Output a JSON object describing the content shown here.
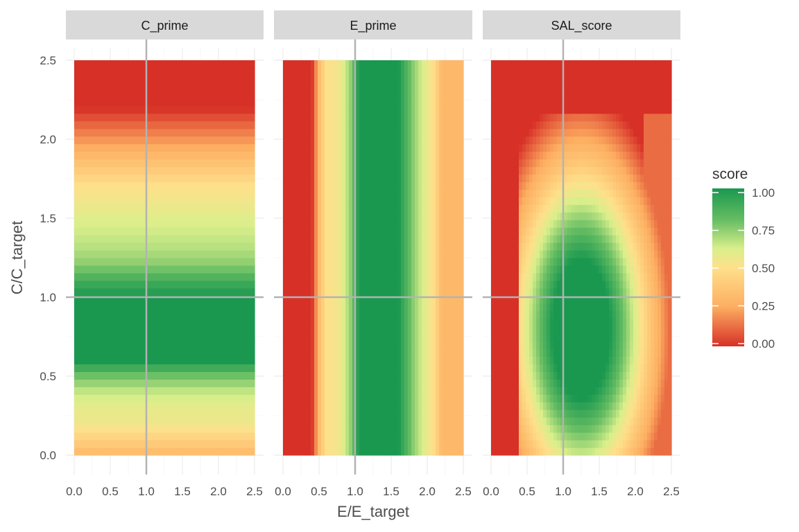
{
  "chart_data": {
    "type": "heatmap",
    "xlabel": "E/E_target",
    "ylabel": "C/C_target",
    "xlim": [
      0,
      2.5
    ],
    "ylim": [
      0,
      2.5
    ],
    "x_ticks": [
      "0.0",
      "0.5",
      "1.0",
      "1.5",
      "2.0",
      "2.5"
    ],
    "y_ticks": [
      "0.0",
      "0.5",
      "1.0",
      "1.5",
      "2.0",
      "2.5"
    ],
    "reference_lines": {
      "x": 1.0,
      "y": 1.0,
      "color": "#b3b3b3"
    },
    "grid": true,
    "facets": [
      {
        "name": "C_prime",
        "varies_with": "y",
        "profile": [
          {
            "v": 0.0,
            "score": 0.3
          },
          {
            "v": 0.1,
            "score": 0.42
          },
          {
            "v": 0.2,
            "score": 0.55
          },
          {
            "v": 0.3,
            "score": 0.58
          },
          {
            "v": 0.4,
            "score": 0.65
          },
          {
            "v": 0.5,
            "score": 0.78
          },
          {
            "v": 0.6,
            "score": 1.0
          },
          {
            "v": 1.0,
            "score": 1.0
          },
          {
            "v": 1.1,
            "score": 0.9
          },
          {
            "v": 1.2,
            "score": 0.75
          },
          {
            "v": 1.3,
            "score": 0.68
          },
          {
            "v": 1.5,
            "score": 0.6
          },
          {
            "v": 1.7,
            "score": 0.5
          },
          {
            "v": 1.8,
            "score": 0.4
          },
          {
            "v": 1.9,
            "score": 0.3
          },
          {
            "v": 2.0,
            "score": 0.2
          },
          {
            "v": 2.2,
            "score": 0.0
          },
          {
            "v": 2.5,
            "score": 0.0
          }
        ]
      },
      {
        "name": "E_prime",
        "varies_with": "x",
        "profile": [
          {
            "v": 0.0,
            "score": 0.0
          },
          {
            "v": 0.4,
            "score": 0.0
          },
          {
            "v": 0.5,
            "score": 0.32
          },
          {
            "v": 0.6,
            "score": 0.5
          },
          {
            "v": 0.8,
            "score": 0.55
          },
          {
            "v": 0.95,
            "score": 0.75
          },
          {
            "v": 1.05,
            "score": 1.0
          },
          {
            "v": 1.6,
            "score": 1.0
          },
          {
            "v": 1.8,
            "score": 0.75
          },
          {
            "v": 1.95,
            "score": 0.6
          },
          {
            "v": 2.1,
            "score": 0.48
          },
          {
            "v": 2.2,
            "score": 0.3
          },
          {
            "v": 2.5,
            "score": 0.3
          }
        ]
      },
      {
        "name": "SAL_score",
        "varies_with": "xy",
        "note_center": {
          "E": 1.25,
          "C": 0.8
        },
        "max_score": 1.0,
        "min_score": 0.0
      }
    ],
    "legend": {
      "title": "score",
      "position": "right",
      "breaks": [
        "0.00",
        "0.25",
        "0.50",
        "0.75",
        "1.00"
      ],
      "colors": [
        "#d73027",
        "#fdae61",
        "#fee08b",
        "#d9ef8b",
        "#66bd63",
        "#1a9850"
      ]
    }
  }
}
